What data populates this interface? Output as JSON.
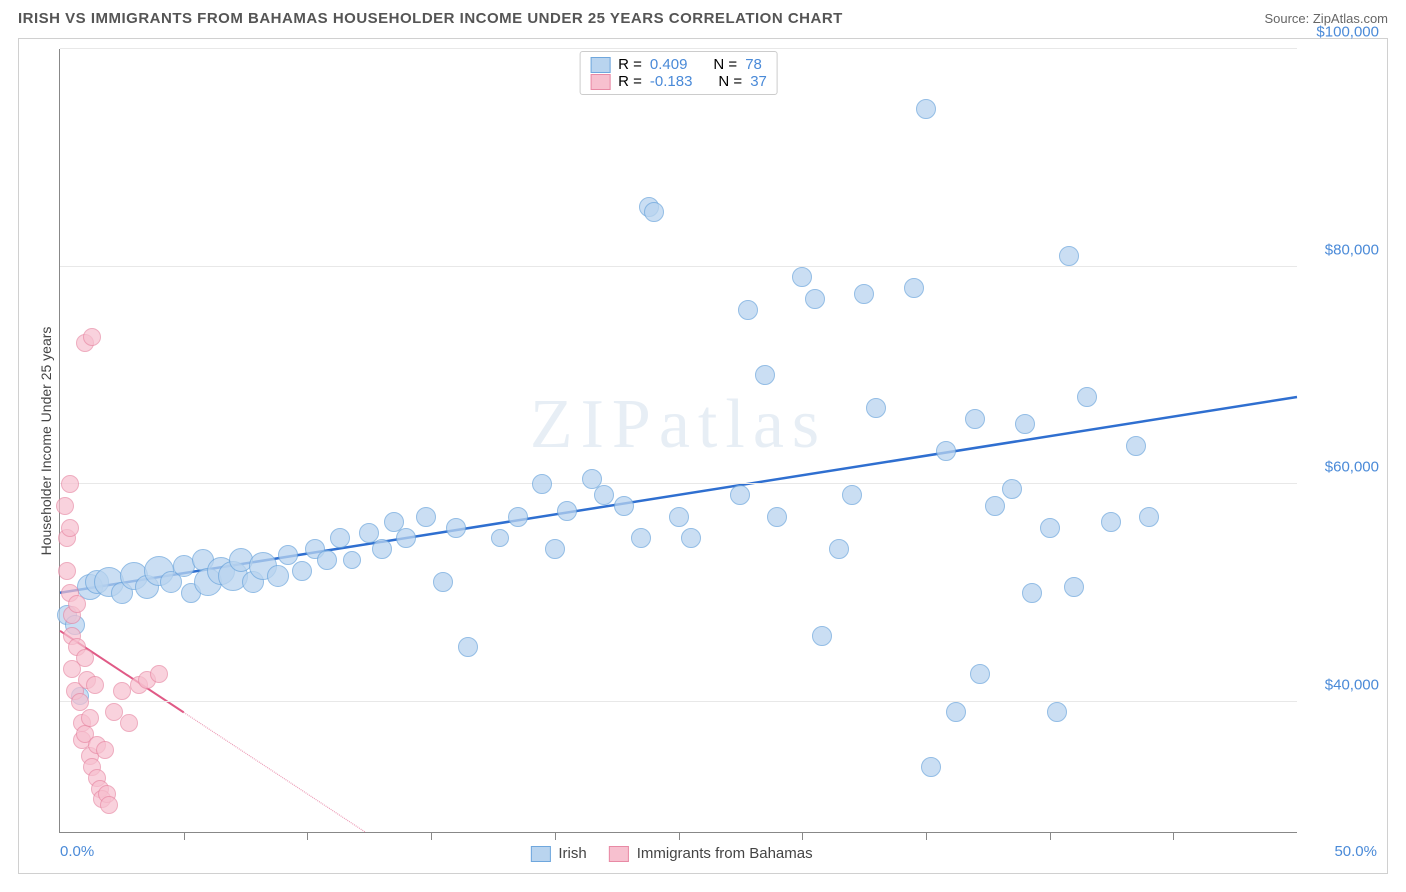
{
  "header": {
    "title": "IRISH VS IMMIGRANTS FROM BAHAMAS HOUSEHOLDER INCOME UNDER 25 YEARS CORRELATION CHART",
    "source": "Source: ZipAtlas.com"
  },
  "watermark": "ZIPatlas",
  "chart": {
    "type": "scatter",
    "ylabel": "Householder Income Under 25 years",
    "xlim": [
      0,
      50
    ],
    "ylim": [
      28000,
      100000
    ],
    "xmin_label": "0.0%",
    "xmax_label": "50.0%",
    "yticks": [
      40000,
      60000,
      80000,
      100000
    ],
    "ytick_labels": [
      "$40,000",
      "$60,000",
      "$80,000",
      "$100,000"
    ],
    "xticks_minor": [
      5,
      10,
      15,
      20,
      25,
      30,
      35,
      40,
      45
    ],
    "background_color": "#ffffff",
    "grid_color": "#e8e8e8",
    "series": [
      {
        "id": "irish",
        "label": "Irish",
        "marker_fill": "#b9d4ef",
        "marker_stroke": "#6fa7dd",
        "marker_opacity": 0.75,
        "line_color": "#2f6fd0",
        "line_width": 2.5,
        "r_label": "R =",
        "r_value": "0.409",
        "n_label": "N =",
        "n_value": "78",
        "trend": {
          "x1": 0,
          "y1": 50000,
          "x2": 50,
          "y2": 68000,
          "dash": "none"
        },
        "points": [
          {
            "x": 0.3,
            "y": 48000,
            "r": 9
          },
          {
            "x": 0.6,
            "y": 47000,
            "r": 9
          },
          {
            "x": 0.8,
            "y": 40500,
            "r": 8
          },
          {
            "x": 1.2,
            "y": 50500,
            "r": 12
          },
          {
            "x": 1.5,
            "y": 51000,
            "r": 11
          },
          {
            "x": 2.0,
            "y": 51000,
            "r": 14
          },
          {
            "x": 2.5,
            "y": 50000,
            "r": 10
          },
          {
            "x": 3.0,
            "y": 51500,
            "r": 13
          },
          {
            "x": 3.5,
            "y": 50500,
            "r": 11
          },
          {
            "x": 4.0,
            "y": 52000,
            "r": 14
          },
          {
            "x": 4.5,
            "y": 51000,
            "r": 10
          },
          {
            "x": 5.0,
            "y": 52500,
            "r": 10
          },
          {
            "x": 5.3,
            "y": 50000,
            "r": 9
          },
          {
            "x": 5.8,
            "y": 53000,
            "r": 10
          },
          {
            "x": 6.0,
            "y": 51000,
            "r": 13
          },
          {
            "x": 6.5,
            "y": 52000,
            "r": 13
          },
          {
            "x": 7.0,
            "y": 51500,
            "r": 14
          },
          {
            "x": 7.3,
            "y": 53000,
            "r": 11
          },
          {
            "x": 7.8,
            "y": 51000,
            "r": 10
          },
          {
            "x": 8.2,
            "y": 52500,
            "r": 13
          },
          {
            "x": 8.8,
            "y": 51500,
            "r": 10
          },
          {
            "x": 9.2,
            "y": 53500,
            "r": 9
          },
          {
            "x": 9.8,
            "y": 52000,
            "r": 9
          },
          {
            "x": 10.3,
            "y": 54000,
            "r": 9
          },
          {
            "x": 10.8,
            "y": 53000,
            "r": 9
          },
          {
            "x": 11.3,
            "y": 55000,
            "r": 9
          },
          {
            "x": 11.8,
            "y": 53000,
            "r": 8
          },
          {
            "x": 12.5,
            "y": 55500,
            "r": 9
          },
          {
            "x": 13.0,
            "y": 54000,
            "r": 9
          },
          {
            "x": 13.5,
            "y": 56500,
            "r": 9
          },
          {
            "x": 14.0,
            "y": 55000,
            "r": 9
          },
          {
            "x": 14.8,
            "y": 57000,
            "r": 9
          },
          {
            "x": 15.5,
            "y": 51000,
            "r": 9
          },
          {
            "x": 16.0,
            "y": 56000,
            "r": 9
          },
          {
            "x": 16.5,
            "y": 45000,
            "r": 9
          },
          {
            "x": 17.8,
            "y": 55000,
            "r": 8
          },
          {
            "x": 18.5,
            "y": 57000,
            "r": 9
          },
          {
            "x": 19.5,
            "y": 60000,
            "r": 9
          },
          {
            "x": 20.0,
            "y": 54000,
            "r": 9
          },
          {
            "x": 20.5,
            "y": 57500,
            "r": 9
          },
          {
            "x": 21.5,
            "y": 60500,
            "r": 9
          },
          {
            "x": 22.0,
            "y": 59000,
            "r": 9
          },
          {
            "x": 22.8,
            "y": 58000,
            "r": 9
          },
          {
            "x": 23.5,
            "y": 55000,
            "r": 9
          },
          {
            "x": 23.8,
            "y": 85500,
            "r": 9
          },
          {
            "x": 24.0,
            "y": 85000,
            "r": 9
          },
          {
            "x": 25.0,
            "y": 57000,
            "r": 9
          },
          {
            "x": 25.5,
            "y": 55000,
            "r": 9
          },
          {
            "x": 27.5,
            "y": 59000,
            "r": 9
          },
          {
            "x": 27.8,
            "y": 76000,
            "r": 9
          },
          {
            "x": 28.5,
            "y": 70000,
            "r": 9
          },
          {
            "x": 29.0,
            "y": 57000,
            "r": 9
          },
          {
            "x": 30.0,
            "y": 79000,
            "r": 9
          },
          {
            "x": 30.5,
            "y": 77000,
            "r": 9
          },
          {
            "x": 30.8,
            "y": 46000,
            "r": 9
          },
          {
            "x": 31.5,
            "y": 54000,
            "r": 9
          },
          {
            "x": 32.0,
            "y": 59000,
            "r": 9
          },
          {
            "x": 32.5,
            "y": 77500,
            "r": 9
          },
          {
            "x": 33.0,
            "y": 67000,
            "r": 9
          },
          {
            "x": 34.5,
            "y": 78000,
            "r": 9
          },
          {
            "x": 35.0,
            "y": 94500,
            "r": 9
          },
          {
            "x": 35.2,
            "y": 34000,
            "r": 9
          },
          {
            "x": 35.8,
            "y": 63000,
            "r": 9
          },
          {
            "x": 36.2,
            "y": 39000,
            "r": 9
          },
          {
            "x": 37.0,
            "y": 66000,
            "r": 9
          },
          {
            "x": 37.2,
            "y": 42500,
            "r": 9
          },
          {
            "x": 37.8,
            "y": 58000,
            "r": 9
          },
          {
            "x": 38.5,
            "y": 59500,
            "r": 9
          },
          {
            "x": 39.0,
            "y": 65500,
            "r": 9
          },
          {
            "x": 39.3,
            "y": 50000,
            "r": 9
          },
          {
            "x": 40.0,
            "y": 56000,
            "r": 9
          },
          {
            "x": 40.3,
            "y": 39000,
            "r": 9
          },
          {
            "x": 40.8,
            "y": 81000,
            "r": 9
          },
          {
            "x": 41.0,
            "y": 50500,
            "r": 9
          },
          {
            "x": 41.5,
            "y": 68000,
            "r": 9
          },
          {
            "x": 42.5,
            "y": 56500,
            "r": 9
          },
          {
            "x": 43.5,
            "y": 63500,
            "r": 9
          },
          {
            "x": 44.0,
            "y": 57000,
            "r": 9
          }
        ]
      },
      {
        "id": "bahamas",
        "label": "Immigrants from Bahamas",
        "marker_fill": "#f7c0cf",
        "marker_stroke": "#e88aa5",
        "marker_opacity": 0.7,
        "line_color": "#e05a86",
        "line_width": 2,
        "r_label": "R =",
        "r_value": "-0.183",
        "n_label": "N =",
        "n_value": "37",
        "trend": {
          "x1": 0,
          "y1": 46500,
          "x2": 5,
          "y2": 39000,
          "dash": "solid_then_dash",
          "dash_from_x": 5
        },
        "points": [
          {
            "x": 0.2,
            "y": 58000,
            "r": 8
          },
          {
            "x": 0.3,
            "y": 55000,
            "r": 8
          },
          {
            "x": 0.3,
            "y": 52000,
            "r": 8
          },
          {
            "x": 0.4,
            "y": 60000,
            "r": 8
          },
          {
            "x": 0.4,
            "y": 50000,
            "r": 8
          },
          {
            "x": 0.5,
            "y": 48000,
            "r": 8
          },
          {
            "x": 0.5,
            "y": 46000,
            "r": 8
          },
          {
            "x": 0.5,
            "y": 43000,
            "r": 8
          },
          {
            "x": 0.6,
            "y": 41000,
            "r": 8
          },
          {
            "x": 0.7,
            "y": 49000,
            "r": 8
          },
          {
            "x": 0.7,
            "y": 45000,
            "r": 8
          },
          {
            "x": 0.8,
            "y": 40000,
            "r": 8
          },
          {
            "x": 0.9,
            "y": 38000,
            "r": 8
          },
          {
            "x": 0.9,
            "y": 36500,
            "r": 8
          },
          {
            "x": 1.0,
            "y": 44000,
            "r": 8
          },
          {
            "x": 1.0,
            "y": 37000,
            "r": 8
          },
          {
            "x": 1.0,
            "y": 73000,
            "r": 8
          },
          {
            "x": 1.1,
            "y": 42000,
            "r": 8
          },
          {
            "x": 1.2,
            "y": 35000,
            "r": 8
          },
          {
            "x": 1.2,
            "y": 38500,
            "r": 8
          },
          {
            "x": 1.3,
            "y": 34000,
            "r": 8
          },
          {
            "x": 1.3,
            "y": 73500,
            "r": 8
          },
          {
            "x": 1.4,
            "y": 41500,
            "r": 8
          },
          {
            "x": 1.5,
            "y": 33000,
            "r": 8
          },
          {
            "x": 1.5,
            "y": 36000,
            "r": 8
          },
          {
            "x": 1.6,
            "y": 32000,
            "r": 8
          },
          {
            "x": 1.7,
            "y": 31000,
            "r": 8
          },
          {
            "x": 1.8,
            "y": 35500,
            "r": 8
          },
          {
            "x": 1.9,
            "y": 31500,
            "r": 8
          },
          {
            "x": 2.0,
            "y": 30500,
            "r": 8
          },
          {
            "x": 2.2,
            "y": 39000,
            "r": 8
          },
          {
            "x": 2.5,
            "y": 41000,
            "r": 8
          },
          {
            "x": 2.8,
            "y": 38000,
            "r": 8
          },
          {
            "x": 3.2,
            "y": 41500,
            "r": 8
          },
          {
            "x": 3.5,
            "y": 42000,
            "r": 8
          },
          {
            "x": 4.0,
            "y": 42500,
            "r": 8
          },
          {
            "x": 0.4,
            "y": 56000,
            "r": 8
          }
        ]
      }
    ]
  }
}
